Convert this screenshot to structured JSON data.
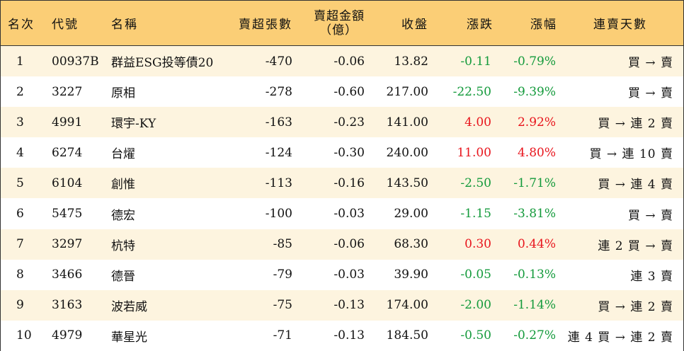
{
  "colors": {
    "header_bg": "#fbce76",
    "odd_row_bg": "#fdf4df",
    "up": "#e8141c",
    "down": "#139a3b"
  },
  "header": {
    "rank": "名次",
    "code": "代號",
    "name": "名稱",
    "net_sell_volume": "賣超張數",
    "net_sell_amount_line1": "賣超金額",
    "net_sell_amount_line2": "（億）",
    "close": "收盤",
    "change": "漲跌",
    "change_pct": "漲幅",
    "consecutive_days": "連賣天數"
  },
  "rows": [
    {
      "rank": "1",
      "code": "00937B",
      "name": "群益ESG投等債20",
      "vol": "-470",
      "amt": "-0.06",
      "close": "13.82",
      "chg": "-0.11",
      "pct": "-0.79%",
      "dir": "down",
      "days": "買 → 賣"
    },
    {
      "rank": "2",
      "code": "3227",
      "name": "原相",
      "vol": "-278",
      "amt": "-0.60",
      "close": "217.00",
      "chg": "-22.50",
      "pct": "-9.39%",
      "dir": "down",
      "days": "買 → 賣"
    },
    {
      "rank": "3",
      "code": "4991",
      "name": "環宇-KY",
      "vol": "-163",
      "amt": "-0.23",
      "close": "141.00",
      "chg": "4.00",
      "pct": "2.92%",
      "dir": "up",
      "days": "買 → 連 2 賣"
    },
    {
      "rank": "4",
      "code": "6274",
      "name": "台燿",
      "vol": "-124",
      "amt": "-0.30",
      "close": "240.00",
      "chg": "11.00",
      "pct": "4.80%",
      "dir": "up",
      "days": "買 → 連 10 賣"
    },
    {
      "rank": "5",
      "code": "6104",
      "name": "創惟",
      "vol": "-113",
      "amt": "-0.16",
      "close": "143.50",
      "chg": "-2.50",
      "pct": "-1.71%",
      "dir": "down",
      "days": "買 → 連 4 賣"
    },
    {
      "rank": "6",
      "code": "5475",
      "name": "德宏",
      "vol": "-100",
      "amt": "-0.03",
      "close": "29.00",
      "chg": "-1.15",
      "pct": "-3.81%",
      "dir": "down",
      "days": "買 → 賣"
    },
    {
      "rank": "7",
      "code": "3297",
      "name": "杭特",
      "vol": "-85",
      "amt": "-0.06",
      "close": "68.30",
      "chg": "0.30",
      "pct": "0.44%",
      "dir": "up",
      "days": "連 2 買 → 賣"
    },
    {
      "rank": "8",
      "code": "3466",
      "name": "德晉",
      "vol": "-79",
      "amt": "-0.03",
      "close": "39.90",
      "chg": "-0.05",
      "pct": "-0.13%",
      "dir": "down",
      "days": "連 3 賣"
    },
    {
      "rank": "9",
      "code": "3163",
      "name": "波若威",
      "vol": "-75",
      "amt": "-0.13",
      "close": "174.00",
      "chg": "-2.00",
      "pct": "-1.14%",
      "dir": "down",
      "days": "買 → 連 2 賣"
    },
    {
      "rank": "10",
      "code": "4979",
      "name": "華星光",
      "vol": "-71",
      "amt": "-0.13",
      "close": "184.50",
      "chg": "-0.50",
      "pct": "-0.27%",
      "dir": "down",
      "days": "連 4 買 → 連 2 賣"
    }
  ]
}
